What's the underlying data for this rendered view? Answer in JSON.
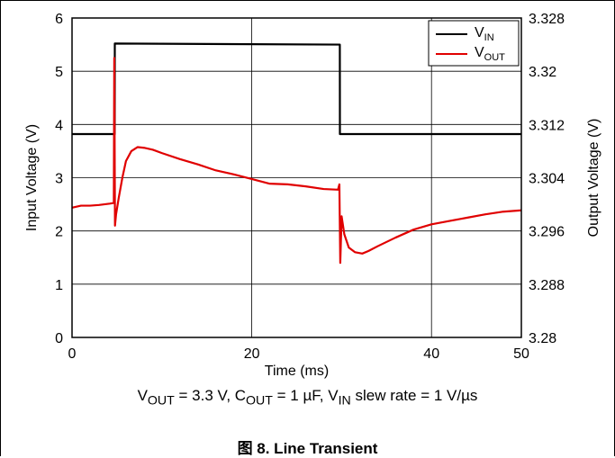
{
  "chart_data": {
    "type": "line",
    "xlabel": "Time (ms)",
    "ylabel_left": "Input Voltage (V)",
    "ylabel_right": "Output Voltage (V)",
    "xlim": [
      0,
      50
    ],
    "ylim_left": [
      0,
      6
    ],
    "ylim_right": [
      3.28,
      3.328
    ],
    "x_ticks": [
      "0",
      "20",
      "40",
      "50"
    ],
    "x_tick_values": [
      0,
      20,
      40,
      50
    ],
    "y_left_ticks": [
      "0",
      "1",
      "2",
      "3",
      "4",
      "5",
      "6"
    ],
    "y_left_tick_values": [
      0,
      1,
      2,
      3,
      4,
      5,
      6
    ],
    "y_right_ticks": [
      "3.28",
      "3.288",
      "3.296",
      "3.304",
      "3.312",
      "3.32",
      "3.328"
    ],
    "y_right_tick_values": [
      3.28,
      3.288,
      3.296,
      3.304,
      3.312,
      3.32,
      3.328
    ],
    "grid": true,
    "legend_position": "top-right",
    "series": [
      {
        "name": "VIN",
        "name_main": "V",
        "name_sub": "IN",
        "color": "#000000",
        "axis": "left",
        "x": [
          0,
          4.75,
          4.76,
          29.8,
          29.81,
          50
        ],
        "y": [
          3.82,
          3.82,
          5.52,
          5.5,
          3.82,
          3.82
        ]
      },
      {
        "name": "VOUT",
        "name_main": "V",
        "name_sub": "OUT",
        "color": "#e00000",
        "axis": "right",
        "x": [
          0,
          1,
          2,
          3,
          4.2,
          4.65,
          4.7,
          4.78,
          4.9,
          5.2,
          5.6,
          6,
          6.6,
          7.3,
          8,
          9,
          10,
          12,
          14,
          16,
          18,
          20,
          22,
          24,
          26,
          28,
          29.6,
          29.75,
          29.85,
          30.0,
          30.3,
          30.8,
          31.5,
          32.3,
          33,
          34,
          36,
          38,
          40,
          42,
          44,
          46,
          48,
          50
        ],
        "y": [
          3.2995,
          3.2998,
          3.2998,
          3.2999,
          3.3001,
          3.3002,
          3.322,
          3.2968,
          3.2985,
          3.301,
          3.304,
          3.3065,
          3.308,
          3.3086,
          3.3085,
          3.3082,
          3.3077,
          3.3068,
          3.306,
          3.3051,
          3.3045,
          3.3038,
          3.3031,
          3.303,
          3.3027,
          3.3023,
          3.3022,
          3.303,
          3.2912,
          3.2982,
          3.2955,
          3.2935,
          3.2928,
          3.2926,
          3.293,
          3.2937,
          3.295,
          3.2962,
          3.297,
          3.2975,
          3.298,
          3.2985,
          3.2989,
          3.2991
        ]
      }
    ]
  },
  "subtitle": {
    "vout_main": "V",
    "vout_sub": "OUT",
    "vout_rest": " = 3.3 V, C",
    "cout_sub": "OUT",
    "cout_rest": " = 1 µF, V",
    "vin_sub": "IN",
    "vin_rest": " slew rate = 1 V/µs"
  },
  "caption": "图 8. Line Transient"
}
